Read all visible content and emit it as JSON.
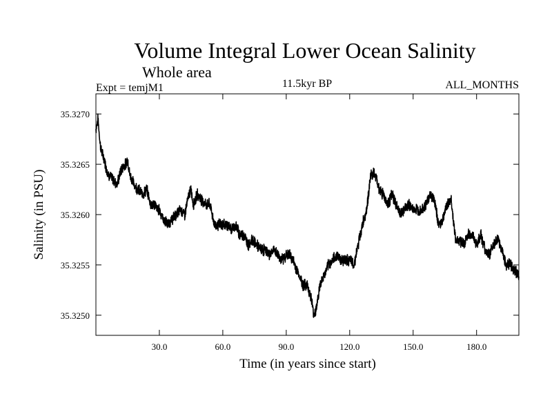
{
  "chart_data": {
    "type": "line",
    "title": "Volume Integral Lower Ocean Salinity",
    "subtitle": "Whole area",
    "experiment": "Expt = temjM1",
    "period": "11.5kyr BP",
    "months": "ALL_MONTHS",
    "xlabel": "Time (in years since start)",
    "ylabel": "Salinity (in PSU)",
    "xlim": [
      0,
      200
    ],
    "ylim": [
      35.3248,
      35.3272
    ],
    "xticks": [
      30,
      60,
      90,
      120,
      150,
      180
    ],
    "xtick_labels": [
      "30.0",
      "60.0",
      "90.0",
      "120.0",
      "150.0",
      "180.0"
    ],
    "yticks": [
      35.325,
      35.3255,
      35.326,
      35.3265,
      35.327
    ],
    "ytick_labels": [
      "35.3250",
      "35.3255",
      "35.3260",
      "35.3265",
      "35.3270"
    ],
    "grid": false,
    "legend": "none",
    "series": [
      {
        "name": "Salinity",
        "color": "#000000",
        "x": [
          0,
          1,
          2,
          3,
          4,
          5,
          6,
          8,
          10,
          12,
          14,
          15,
          16,
          18,
          20,
          22,
          24,
          26,
          28,
          29,
          30,
          32,
          34,
          36,
          38,
          40,
          42,
          44,
          45,
          46,
          48,
          50,
          52,
          54,
          56,
          58,
          60,
          62,
          64,
          66,
          68,
          70,
          72,
          74,
          76,
          78,
          80,
          82,
          84,
          86,
          88,
          90,
          92,
          94,
          96,
          98,
          100,
          102,
          103,
          104,
          106,
          108,
          110,
          112,
          114,
          116,
          118,
          120,
          122,
          124,
          126,
          128,
          130,
          132,
          134,
          136,
          138,
          140,
          142,
          144,
          146,
          148,
          150,
          152,
          154,
          156,
          158,
          160,
          162,
          164,
          166,
          168,
          170,
          172,
          174,
          176,
          178,
          180,
          182,
          184,
          186,
          188,
          190,
          192,
          194,
          196,
          198,
          200
        ],
        "values": [
          35.32685,
          35.32695,
          35.3267,
          35.3266,
          35.32655,
          35.32645,
          35.3264,
          35.32635,
          35.3263,
          35.32645,
          35.3265,
          35.32655,
          35.3264,
          35.3263,
          35.32625,
          35.3262,
          35.32625,
          35.3261,
          35.3261,
          35.32605,
          35.32605,
          35.32595,
          35.3259,
          35.32595,
          35.326,
          35.32605,
          35.326,
          35.3262,
          35.32625,
          35.3261,
          35.3262,
          35.32615,
          35.3261,
          35.3261,
          35.3259,
          35.3259,
          35.3259,
          35.3259,
          35.32585,
          35.3259,
          35.3258,
          35.3258,
          35.3257,
          35.32575,
          35.3257,
          35.32565,
          35.32565,
          35.3256,
          35.32565,
          35.3256,
          35.32555,
          35.3256,
          35.3256,
          35.3255,
          35.3254,
          35.3253,
          35.3253,
          35.32515,
          35.325,
          35.32505,
          35.3253,
          35.3254,
          35.3255,
          35.32555,
          35.3256,
          35.32555,
          35.32555,
          35.32555,
          35.3255,
          35.3257,
          35.3259,
          35.32605,
          35.3264,
          35.3264,
          35.32625,
          35.3262,
          35.3261,
          35.3262,
          35.3261,
          35.326,
          35.32605,
          35.3261,
          35.32605,
          35.32605,
          35.32605,
          35.3261,
          35.3262,
          35.32615,
          35.3259,
          35.32595,
          35.3261,
          35.32615,
          35.32575,
          35.32575,
          35.3257,
          35.3258,
          35.3258,
          35.3257,
          35.3258,
          35.32565,
          35.3256,
          35.3257,
          35.32575,
          35.32565,
          35.3255,
          35.3255,
          35.32545,
          35.3254
        ]
      }
    ]
  }
}
